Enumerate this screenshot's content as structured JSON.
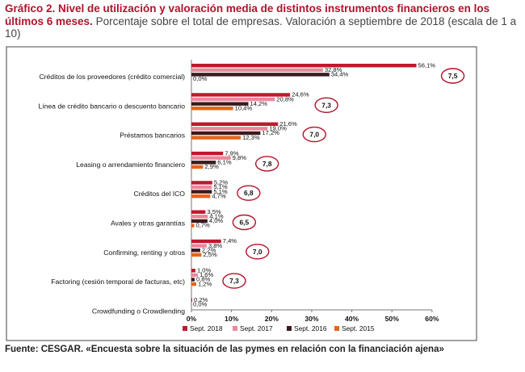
{
  "header": {
    "title_bold": "Gráfico 2. Nivel de utilización y valoración media de distintos instrumentos financieros en los últimos 6 meses.",
    "title_rest": " Porcentaje sobre el total de empresas. Valoración a septiembre de 2018 (escala de 1 a 10)"
  },
  "footer": {
    "source": "Fuente: CESGAR. «Encuesta sobre la situación de las pymes en relación con la financiación ajena»"
  },
  "chart_data": {
    "type": "bar",
    "orientation": "horizontal",
    "categories": [
      "Créditos de los proveedores (crédito comercial)",
      "Línea de crédito bancario o descuento bancario",
      "Préstamos bancarios",
      "Leasing o arrendamiento financiero",
      "Créditos del ICO",
      "Avales y otras garantías",
      "Confirming, renting  y otros",
      "Factoring (cesión temporal de facturas, etc)",
      "Crowdfunding o Crowdlending"
    ],
    "series": [
      {
        "name": "Sept. 2018",
        "color": "#c0182e",
        "values": [
          56.1,
          24.6,
          21.6,
          7.9,
          5.2,
          3.5,
          7.4,
          1.0,
          0.2
        ],
        "labels": [
          "56,1%",
          "24,6%",
          "21,6%",
          "7,9%",
          "5,2%",
          "3,5%",
          "7,4%",
          "1,0%",
          "0,2%"
        ]
      },
      {
        "name": "Sept. 2017",
        "color": "#e9899a",
        "values": [
          32.8,
          20.8,
          19.0,
          9.8,
          5.1,
          4.1,
          3.8,
          1.6,
          0.0
        ],
        "labels": [
          "32,8%",
          "20,8%",
          "19,0%",
          "9,8%",
          "5,1%",
          "4,1%",
          "3,8%",
          "1,6%",
          "0,0%"
        ]
      },
      {
        "name": "Sept. 2016",
        "color": "#3b1a1e",
        "values": [
          34.4,
          14.2,
          17.2,
          6.1,
          5.1,
          4.0,
          2.2,
          0.8,
          null
        ],
        "labels": [
          "34,4%",
          "14,2%",
          "17,2%",
          "6,1%",
          "5,1%",
          "4,0%",
          "2,2%",
          "0,8%",
          ""
        ]
      },
      {
        "name": "Sept. 2015",
        "color": "#e8631c",
        "values": [
          0.0,
          10.4,
          12.3,
          2.9,
          4.7,
          0.7,
          2.5,
          1.2,
          null
        ],
        "labels": [
          "0,0%",
          "10,4%",
          "12,3%",
          "2,9%",
          "4,7%",
          "0,7%",
          "2,5%",
          "1,2%",
          ""
        ]
      }
    ],
    "valoraciones": [
      "7,5",
      "7,3",
      "7,0",
      "7,8",
      "6,8",
      "6,5",
      "7,0",
      "7,3",
      ""
    ],
    "xlim": [
      0,
      60
    ],
    "xticks": [
      "0%",
      "10%",
      "20%",
      "30%",
      "40%",
      "50%",
      "60%"
    ],
    "grid": false,
    "legend_position": "bottom"
  }
}
